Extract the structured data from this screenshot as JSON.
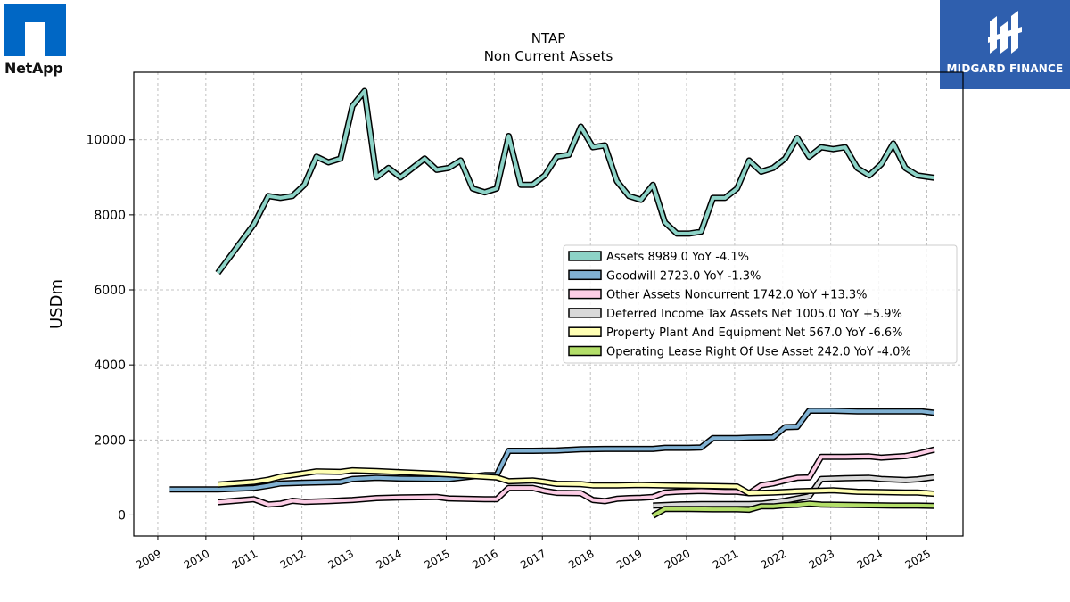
{
  "logos": {
    "left": {
      "name": "NetApp"
    },
    "right": {
      "name": "MIDGARD FINANCE"
    }
  },
  "chart_data": {
    "type": "line",
    "title": "NTAP",
    "subtitle": "Non Current  Assets",
    "xlabel": "",
    "ylabel": "USDm",
    "xlim": [
      2008.5,
      2025.75
    ],
    "ylim": [
      -560,
      11800
    ],
    "yticks": [
      0,
      2000,
      4000,
      6000,
      8000,
      10000
    ],
    "xticks": [
      "2009",
      "2010",
      "2011",
      "2012",
      "2013",
      "2014",
      "2015",
      "2016",
      "2017",
      "2018",
      "2019",
      "2020",
      "2021",
      "2022",
      "2023",
      "2024",
      "2025"
    ],
    "grid": true,
    "legend_position": "center-right",
    "series": [
      {
        "name": "Assets",
        "legend": "Assets  8989.0 YoY -4.1%",
        "color": "#8dd3c7",
        "points": [
          [
            2010.25,
            6450
          ],
          [
            2011.0,
            7750
          ],
          [
            2011.3,
            8500
          ],
          [
            2011.55,
            8450
          ],
          [
            2011.8,
            8500
          ],
          [
            2012.05,
            8800
          ],
          [
            2012.3,
            9550
          ],
          [
            2012.55,
            9400
          ],
          [
            2012.8,
            9500
          ],
          [
            2013.05,
            10900
          ],
          [
            2013.3,
            11300
          ],
          [
            2013.55,
            9000
          ],
          [
            2013.8,
            9250
          ],
          [
            2014.05,
            9000
          ],
          [
            2014.55,
            9500
          ],
          [
            2014.8,
            9200
          ],
          [
            2015.05,
            9250
          ],
          [
            2015.3,
            9450
          ],
          [
            2015.55,
            8700
          ],
          [
            2015.8,
            8600
          ],
          [
            2016.05,
            8700
          ],
          [
            2016.3,
            10100
          ],
          [
            2016.55,
            8800
          ],
          [
            2016.8,
            8800
          ],
          [
            2017.05,
            9050
          ],
          [
            2017.3,
            9550
          ],
          [
            2017.55,
            9600
          ],
          [
            2017.8,
            10350
          ],
          [
            2018.05,
            9800
          ],
          [
            2018.3,
            9850
          ],
          [
            2018.55,
            8900
          ],
          [
            2018.8,
            8500
          ],
          [
            2019.05,
            8400
          ],
          [
            2019.3,
            8800
          ],
          [
            2019.55,
            7800
          ],
          [
            2019.8,
            7500
          ],
          [
            2020.05,
            7500
          ],
          [
            2020.3,
            7550
          ],
          [
            2020.55,
            8450
          ],
          [
            2020.8,
            8450
          ],
          [
            2021.05,
            8700
          ],
          [
            2021.3,
            9450
          ],
          [
            2021.55,
            9150
          ],
          [
            2021.8,
            9250
          ],
          [
            2022.05,
            9500
          ],
          [
            2022.3,
            10050
          ],
          [
            2022.55,
            9550
          ],
          [
            2022.8,
            9800
          ],
          [
            2023.05,
            9750
          ],
          [
            2023.3,
            9800
          ],
          [
            2023.55,
            9250
          ],
          [
            2023.8,
            9050
          ],
          [
            2024.05,
            9350
          ],
          [
            2024.3,
            9900
          ],
          [
            2024.55,
            9250
          ],
          [
            2024.8,
            9050
          ],
          [
            2025.15,
            8989
          ]
        ]
      },
      {
        "name": "Goodwill",
        "legend": "Goodwill  2723.0 YoY -1.3%",
        "color": "#80b1d3",
        "points": [
          [
            2009.25,
            680
          ],
          [
            2010.25,
            680
          ],
          [
            2011.0,
            720
          ],
          [
            2011.3,
            780
          ],
          [
            2011.55,
            840
          ],
          [
            2012.05,
            860
          ],
          [
            2012.8,
            880
          ],
          [
            2013.05,
            960
          ],
          [
            2013.55,
            990
          ],
          [
            2014.05,
            970
          ],
          [
            2015.05,
            960
          ],
          [
            2015.8,
            1060
          ],
          [
            2016.05,
            1060
          ],
          [
            2016.3,
            1710
          ],
          [
            2016.8,
            1710
          ],
          [
            2017.3,
            1720
          ],
          [
            2017.8,
            1750
          ],
          [
            2018.3,
            1760
          ],
          [
            2018.8,
            1760
          ],
          [
            2019.3,
            1760
          ],
          [
            2019.55,
            1790
          ],
          [
            2020.05,
            1790
          ],
          [
            2020.3,
            1800
          ],
          [
            2020.55,
            2050
          ],
          [
            2021.05,
            2050
          ],
          [
            2021.3,
            2060
          ],
          [
            2021.8,
            2070
          ],
          [
            2022.05,
            2340
          ],
          [
            2022.3,
            2350
          ],
          [
            2022.55,
            2780
          ],
          [
            2023.05,
            2780
          ],
          [
            2023.55,
            2760
          ],
          [
            2024.05,
            2760
          ],
          [
            2024.55,
            2760
          ],
          [
            2024.9,
            2760
          ],
          [
            2025.15,
            2723
          ]
        ]
      },
      {
        "name": "Other Assets Noncurrent",
        "legend": "Other Assets Noncurrent  1742.0 YoY +13.3%",
        "color": "#fccde5",
        "points": [
          [
            2010.25,
            340
          ],
          [
            2011.0,
            420
          ],
          [
            2011.3,
            280
          ],
          [
            2011.55,
            300
          ],
          [
            2011.8,
            380
          ],
          [
            2012.05,
            350
          ],
          [
            2012.55,
            370
          ],
          [
            2013.05,
            400
          ],
          [
            2013.55,
            450
          ],
          [
            2014.05,
            470
          ],
          [
            2014.8,
            480
          ],
          [
            2015.05,
            440
          ],
          [
            2015.8,
            420
          ],
          [
            2016.05,
            420
          ],
          [
            2016.3,
            720
          ],
          [
            2016.8,
            720
          ],
          [
            2017.05,
            640
          ],
          [
            2017.3,
            590
          ],
          [
            2017.8,
            580
          ],
          [
            2018.05,
            400
          ],
          [
            2018.3,
            370
          ],
          [
            2018.55,
            430
          ],
          [
            2018.8,
            450
          ],
          [
            2019.05,
            460
          ],
          [
            2019.3,
            480
          ],
          [
            2019.55,
            600
          ],
          [
            2019.8,
            620
          ],
          [
            2020.3,
            640
          ],
          [
            2020.8,
            620
          ],
          [
            2021.05,
            620
          ],
          [
            2021.3,
            580
          ],
          [
            2021.55,
            790
          ],
          [
            2021.8,
            840
          ],
          [
            2022.05,
            920
          ],
          [
            2022.3,
            990
          ],
          [
            2022.55,
            1000
          ],
          [
            2022.8,
            1550
          ],
          [
            2023.3,
            1550
          ],
          [
            2023.8,
            1560
          ],
          [
            2024.05,
            1530
          ],
          [
            2024.3,
            1550
          ],
          [
            2024.55,
            1570
          ],
          [
            2024.8,
            1630
          ],
          [
            2025.15,
            1742
          ]
        ]
      },
      {
        "name": "Deferred Income Tax Assets Net",
        "legend": "Deferred Income Tax Assets Net  1005.0 YoY +5.9%",
        "color": "#d9d9d9",
        "points": [
          [
            2019.3,
            250
          ],
          [
            2019.8,
            280
          ],
          [
            2020.3,
            290
          ],
          [
            2020.8,
            290
          ],
          [
            2021.3,
            290
          ],
          [
            2021.55,
            300
          ],
          [
            2022.05,
            380
          ],
          [
            2022.55,
            500
          ],
          [
            2022.8,
            960
          ],
          [
            2023.3,
            980
          ],
          [
            2023.8,
            990
          ],
          [
            2024.05,
            960
          ],
          [
            2024.55,
            930
          ],
          [
            2024.8,
            950
          ],
          [
            2025.15,
            1005
          ]
        ]
      },
      {
        "name": "Property Plant And Equipment Net",
        "legend": "Property Plant And Equipment Net  567.0 YoY -6.6%",
        "color": "#ffffb3",
        "points": [
          [
            2010.25,
            810
          ],
          [
            2011.0,
            880
          ],
          [
            2011.3,
            940
          ],
          [
            2011.55,
            1020
          ],
          [
            2012.05,
            1110
          ],
          [
            2012.3,
            1160
          ],
          [
            2012.8,
            1150
          ],
          [
            2013.05,
            1190
          ],
          [
            2013.55,
            1170
          ],
          [
            2014.05,
            1140
          ],
          [
            2014.8,
            1100
          ],
          [
            2015.05,
            1080
          ],
          [
            2015.55,
            1040
          ],
          [
            2016.05,
            1000
          ],
          [
            2016.3,
            900
          ],
          [
            2016.8,
            920
          ],
          [
            2017.05,
            880
          ],
          [
            2017.3,
            830
          ],
          [
            2017.8,
            820
          ],
          [
            2018.05,
            790
          ],
          [
            2018.55,
            790
          ],
          [
            2019.05,
            800
          ],
          [
            2019.55,
            790
          ],
          [
            2020.05,
            780
          ],
          [
            2020.55,
            770
          ],
          [
            2021.05,
            760
          ],
          [
            2021.3,
            580
          ],
          [
            2021.8,
            600
          ],
          [
            2022.3,
            630
          ],
          [
            2022.8,
            650
          ],
          [
            2023.05,
            660
          ],
          [
            2023.55,
            620
          ],
          [
            2024.05,
            610
          ],
          [
            2024.55,
            600
          ],
          [
            2024.8,
            600
          ],
          [
            2025.15,
            567
          ]
        ]
      },
      {
        "name": "Operating Lease Right Of Use Asset",
        "legend": "Operating Lease Right Of Use Asset  242.0 YoY -4.0%",
        "color": "#b3de69",
        "points": [
          [
            2019.3,
            -20
          ],
          [
            2019.55,
            160
          ],
          [
            2020.05,
            160
          ],
          [
            2020.55,
            150
          ],
          [
            2021.05,
            150
          ],
          [
            2021.3,
            140
          ],
          [
            2021.55,
            230
          ],
          [
            2021.8,
            230
          ],
          [
            2022.05,
            260
          ],
          [
            2022.3,
            270
          ],
          [
            2022.55,
            300
          ],
          [
            2022.8,
            280
          ],
          [
            2023.3,
            270
          ],
          [
            2023.8,
            260
          ],
          [
            2024.3,
            250
          ],
          [
            2024.8,
            250
          ],
          [
            2025.15,
            242
          ]
        ]
      }
    ]
  }
}
